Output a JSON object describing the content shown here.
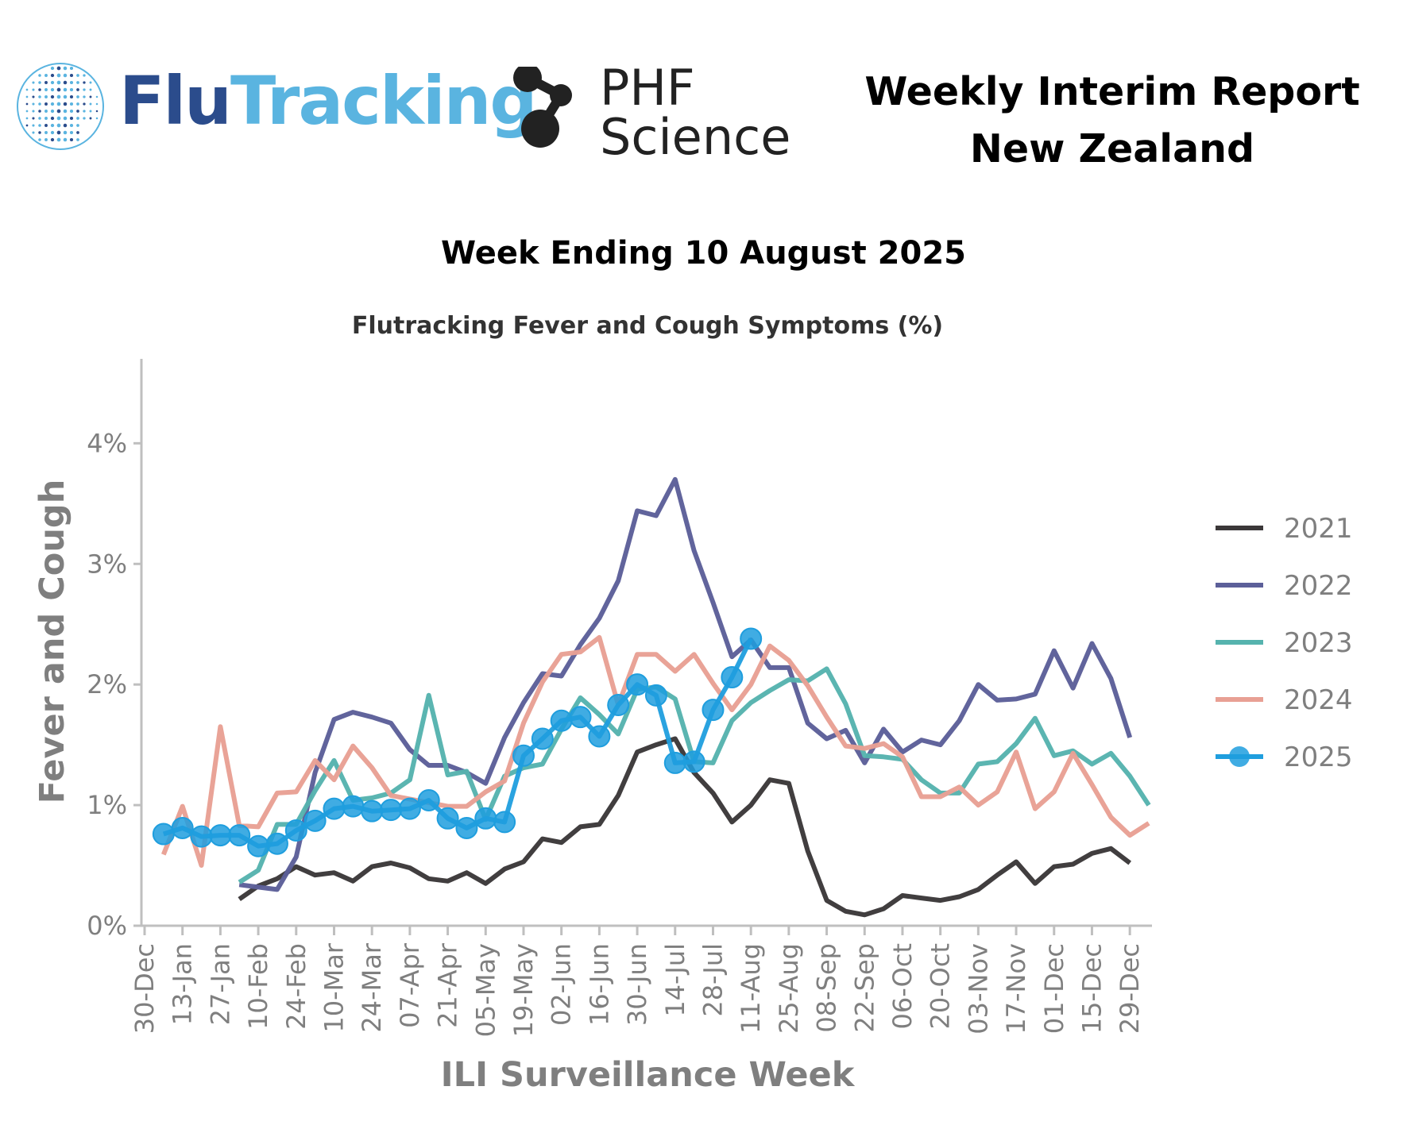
{
  "header": {
    "flu_brand_part1": "Flu",
    "flu_brand_part2": "Tracking",
    "phf_line1": "PHF",
    "phf_line2": "Science",
    "report_line1": "Weekly Interim Report",
    "report_line2": "New Zealand"
  },
  "week_title": "Week Ending 10 August 2025",
  "colors": {
    "2021": "#3b3839",
    "2022": "#5c5f99",
    "2023": "#56b3ae",
    "2024": "#e8a094",
    "2025": "#1f9ede",
    "flu_dark": "#2b4c8c",
    "flu_light": "#5ab4e0",
    "axis": "#bfbfbf",
    "tick_text": "#7f7f7f"
  },
  "chart_data": {
    "type": "line",
    "title": "Flutracking Fever and Cough Symptoms (%)",
    "xlabel": "ILI Surveillance Week",
    "ylabel": "Fever and Cough",
    "ylim": [
      0,
      4.7
    ],
    "yticks": [
      0,
      1,
      2,
      3,
      4
    ],
    "ytick_labels": [
      "0%",
      "1%",
      "2%",
      "3%",
      "4%"
    ],
    "xlim": [
      0,
      53
    ],
    "xticks": [
      0,
      2,
      4,
      6,
      8,
      10,
      12,
      14,
      16,
      18,
      20,
      22,
      24,
      26,
      28,
      30,
      32,
      34,
      36,
      38,
      40,
      42,
      44,
      46,
      48,
      50,
      52
    ],
    "xtick_labels": [
      "30-Dec",
      "13-Jan",
      "27-Jan",
      "10-Feb",
      "24-Feb",
      "10-Mar",
      "24-Mar",
      "07-Apr",
      "21-Apr",
      "05-May",
      "19-May",
      "02-Jun",
      "16-Jun",
      "30-Jun",
      "14-Jul",
      "28-Jul",
      "11-Aug",
      "25-Aug",
      "08-Sep",
      "22-Sep",
      "06-Oct",
      "20-Oct",
      "03-Nov",
      "17-Nov",
      "01-Dec",
      "15-Dec",
      "29-Dec"
    ],
    "grid": false,
    "legend_position": "right",
    "series": [
      {
        "name": "2021",
        "start": 5,
        "markers": false,
        "values": [
          0.22,
          0.33,
          0.39,
          0.49,
          0.42,
          0.44,
          0.37,
          0.49,
          0.52,
          0.48,
          0.39,
          0.37,
          0.44,
          0.35,
          0.47,
          0.53,
          0.72,
          0.69,
          0.82,
          0.84,
          1.08,
          1.44,
          1.5,
          1.55,
          1.27,
          1.1,
          0.86,
          1.0,
          1.21,
          1.18,
          0.62,
          0.21,
          0.12,
          0.09,
          0.14,
          0.25,
          0.23,
          0.21,
          0.24,
          0.3,
          0.42,
          0.53,
          0.35,
          0.49,
          0.51,
          0.6,
          0.64,
          0.52
        ]
      },
      {
        "name": "2022",
        "start": 5,
        "markers": false,
        "values": [
          0.34,
          0.32,
          0.3,
          0.57,
          1.27,
          1.71,
          1.77,
          1.73,
          1.68,
          1.46,
          1.33,
          1.33,
          1.27,
          1.18,
          1.56,
          1.85,
          2.09,
          2.07,
          2.33,
          2.55,
          2.86,
          3.44,
          3.4,
          3.7,
          3.11,
          2.68,
          2.23,
          2.37,
          2.14,
          2.14,
          1.68,
          1.55,
          1.62,
          1.35,
          1.63,
          1.44,
          1.54,
          1.5,
          1.7,
          2.0,
          1.87,
          1.88,
          1.92,
          2.28,
          1.97,
          2.34,
          2.05,
          1.56
        ]
      },
      {
        "name": "2023",
        "start": 5,
        "markers": false,
        "values": [
          0.36,
          0.46,
          0.84,
          0.84,
          1.12,
          1.37,
          1.04,
          1.06,
          1.1,
          1.21,
          1.91,
          1.25,
          1.28,
          0.88,
          1.24,
          1.31,
          1.34,
          1.63,
          1.89,
          1.75,
          1.59,
          1.96,
          1.98,
          1.88,
          1.36,
          1.35,
          1.7,
          1.85,
          1.95,
          2.04,
          2.03,
          2.13,
          1.84,
          1.41,
          1.4,
          1.38,
          1.21,
          1.1,
          1.1,
          1.34,
          1.36,
          1.51,
          1.72,
          1.41,
          1.45,
          1.34,
          1.43,
          1.24,
          1.0
        ]
      },
      {
        "name": "2024",
        "start": 1,
        "markers": false,
        "values": [
          0.59,
          0.99,
          0.5,
          1.65,
          0.83,
          0.82,
          1.1,
          1.11,
          1.37,
          1.21,
          1.49,
          1.31,
          1.08,
          1.05,
          1.02,
          0.99,
          0.99,
          1.11,
          1.2,
          1.68,
          2.02,
          2.25,
          2.27,
          2.39,
          1.83,
          2.25,
          2.25,
          2.11,
          2.25,
          2.01,
          1.79,
          2.0,
          2.32,
          2.2,
          1.99,
          1.73,
          1.49,
          1.47,
          1.51,
          1.4,
          1.07,
          1.07,
          1.15,
          1.0,
          1.11,
          1.44,
          0.97,
          1.11,
          1.43,
          1.17,
          0.9,
          0.75,
          0.85
        ]
      },
      {
        "name": "2025",
        "start": 1,
        "markers": true,
        "values": [
          0.76,
          0.81,
          0.74,
          0.75,
          0.75,
          0.66,
          0.68,
          0.79,
          0.87,
          0.97,
          0.99,
          0.95,
          0.96,
          0.97,
          1.04,
          0.89,
          0.81,
          0.89,
          0.86,
          1.41,
          1.55,
          1.7,
          1.73,
          1.57,
          1.83,
          2.0,
          1.91,
          1.35,
          1.36,
          1.79,
          2.06,
          2.38
        ]
      }
    ]
  }
}
